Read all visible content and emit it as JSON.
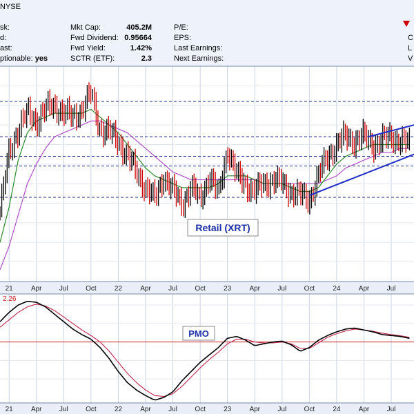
{
  "header": {
    "ticker_fragment": "NYSE",
    "left_labels": [
      "sk:",
      "d:",
      "ast:",
      "ptionable:"
    ],
    "left_values": [
      "",
      "",
      "",
      "yes"
    ],
    "mid_labels": [
      "Mkt Cap:",
      "Fwd Dividend:",
      "Fwd Yield:",
      "SCTR (ETF):"
    ],
    "mid_values": [
      "405.2M",
      "0.95664",
      "1.42%",
      "2.3"
    ],
    "right_labels": [
      "P/E:",
      "EPS:",
      "Last Earnings:",
      "Next Earnings:"
    ],
    "right_edge": [
      "C",
      "L",
      "V"
    ],
    "accent_color": "#cc0000"
  },
  "chart_data": [
    {
      "type": "line",
      "name": "price-panel",
      "label": "Retail (XRT)",
      "x_tick_labels": [
        "21",
        "Apr",
        "Jul",
        "Oct",
        "22",
        "Apr",
        "Jul",
        "Oct",
        "23",
        "Apr",
        "Jul",
        "Oct",
        "24",
        "Apr",
        "Jul"
      ],
      "x_tick_months": [
        0,
        3,
        6,
        9,
        12,
        15,
        18,
        21,
        24,
        27,
        30,
        33,
        36,
        39,
        42
      ],
      "x_range_months": [
        -1,
        44.5
      ],
      "y_range": [
        45,
        100
      ],
      "horizontal_levels": [
        91,
        82,
        77,
        74.5,
        66.5
      ],
      "x_months": [
        -1,
        0,
        1,
        2,
        3,
        4,
        5,
        6,
        7,
        8,
        9,
        10,
        11,
        12,
        13,
        14,
        15,
        16,
        17,
        18,
        19,
        20,
        21,
        22,
        23,
        24,
        25,
        26,
        27,
        28,
        29,
        30,
        31,
        32,
        33,
        34,
        35,
        36,
        37,
        38,
        39,
        40,
        41,
        42,
        43,
        44
      ],
      "price": [
        63,
        78,
        84,
        88,
        86,
        89,
        90,
        88,
        87,
        89,
        93,
        84,
        83,
        81,
        77,
        73,
        69,
        66,
        72,
        68,
        65,
        69,
        66,
        72,
        67,
        79,
        72,
        70,
        68,
        70,
        71,
        70,
        68,
        67,
        66,
        72,
        77,
        80,
        82,
        81,
        82,
        80,
        81,
        82,
        81,
        80
      ],
      "ma_green": [
        55,
        64,
        76,
        83,
        86,
        87,
        88,
        88,
        88,
        88,
        89,
        87,
        85,
        83,
        80,
        77,
        74,
        72,
        71,
        70,
        69,
        69,
        69,
        69,
        70,
        72,
        72,
        72,
        71,
        70,
        70,
        70,
        69,
        68,
        68,
        69,
        72,
        75,
        77,
        78,
        79,
        80,
        80,
        80,
        80,
        80
      ],
      "ma_purple": [
        48,
        54,
        62,
        70,
        75,
        79,
        82,
        83,
        84,
        85,
        86,
        86,
        85,
        84,
        83,
        81,
        79,
        77,
        75,
        73,
        72,
        71,
        71,
        71,
        71,
        71,
        71,
        71,
        71,
        70,
        70,
        70,
        70,
        70,
        70,
        70,
        71,
        72,
        74,
        75,
        76,
        77,
        78,
        78,
        79,
        79
      ],
      "trend_upper": [
        [
          39.5,
          82
        ],
        [
          44.5,
          85
        ]
      ],
      "trend_lower": [
        [
          33,
          67
        ],
        [
          44.5,
          77.5
        ]
      ]
    },
    {
      "type": "line",
      "name": "pmo-panel",
      "label": "PMO",
      "top_value_label": "2.26",
      "x_tick_labels": [
        "21",
        "Apr",
        "Jul",
        "Oct",
        "22",
        "Apr",
        "Jul",
        "Oct",
        "23",
        "Apr",
        "Jul",
        "Oct",
        "24",
        "Apr",
        "Jul"
      ],
      "y_range": [
        -3.3,
        2.6
      ],
      "zero_line": 0,
      "x_months": [
        -1,
        0,
        1,
        2,
        3,
        4,
        5,
        6,
        7,
        8,
        9,
        10,
        11,
        12,
        13,
        14,
        15,
        16,
        17,
        18,
        19,
        20,
        21,
        22,
        23,
        24,
        25,
        26,
        27,
        28,
        29,
        30,
        31,
        32,
        33,
        34,
        35,
        36,
        37,
        38,
        39,
        40,
        41,
        42,
        43,
        44
      ],
      "pmo": [
        1.1,
        1.6,
        2.0,
        2.2,
        2.15,
        1.9,
        1.5,
        1.1,
        0.7,
        0.4,
        0.15,
        -0.3,
        -0.9,
        -1.6,
        -2.2,
        -2.6,
        -2.9,
        -3.15,
        -3.0,
        -2.7,
        -2.1,
        -1.6,
        -1.1,
        -0.7,
        -0.3,
        0.2,
        0.3,
        0.1,
        -0.2,
        -0.1,
        0.0,
        0.05,
        -0.15,
        -0.5,
        -0.3,
        0.1,
        0.35,
        0.55,
        0.7,
        0.75,
        0.65,
        0.55,
        0.4,
        0.35,
        0.3,
        0.2
      ],
      "signal": [
        0.8,
        1.2,
        1.6,
        1.9,
        2.05,
        1.95,
        1.7,
        1.35,
        1.0,
        0.65,
        0.35,
        0.0,
        -0.5,
        -1.1,
        -1.7,
        -2.2,
        -2.6,
        -2.9,
        -2.95,
        -2.8,
        -2.4,
        -1.9,
        -1.4,
        -0.95,
        -0.55,
        -0.1,
        0.15,
        0.15,
        0.0,
        -0.05,
        -0.05,
        0.0,
        -0.1,
        -0.35,
        -0.35,
        -0.05,
        0.25,
        0.45,
        0.6,
        0.7,
        0.65,
        0.58,
        0.48,
        0.4,
        0.34,
        0.25
      ]
    }
  ]
}
